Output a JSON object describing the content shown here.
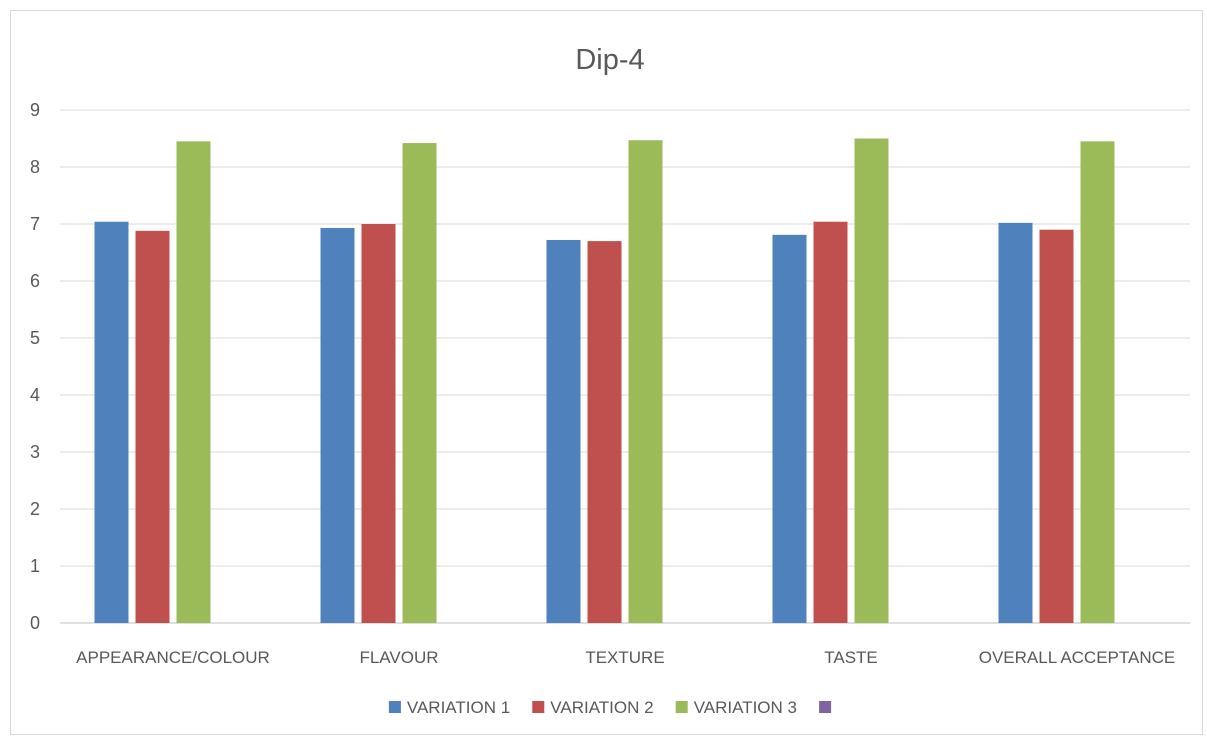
{
  "chart_data": {
    "type": "bar",
    "title": "Dip-4",
    "xlabel": "",
    "ylabel": "",
    "ylim": [
      0,
      9
    ],
    "yticks": [
      "0",
      "1",
      "2",
      "3",
      "4",
      "5",
      "6",
      "7",
      "8",
      "9"
    ],
    "grid": true,
    "legend_position": "bottom",
    "categories": [
      "APPEARANCE/COLOUR",
      "FLAVOUR",
      "TEXTURE",
      "TASTE",
      "OVERALL ACCEPTANCE"
    ],
    "series": [
      {
        "name": "VARIATION 1",
        "color": "#4f81bd",
        "values": [
          7.04,
          6.93,
          6.72,
          6.81,
          7.02
        ]
      },
      {
        "name": "VARIATION 2",
        "color": "#c0504d",
        "values": [
          6.88,
          7.0,
          6.7,
          7.04,
          6.9
        ]
      },
      {
        "name": "VARIATION 3",
        "color": "#9bbb59",
        "values": [
          8.45,
          8.42,
          8.47,
          8.5,
          8.45
        ]
      },
      {
        "name": "",
        "color": "#8064a2",
        "values": [
          null,
          null,
          null,
          null,
          null
        ]
      }
    ]
  }
}
